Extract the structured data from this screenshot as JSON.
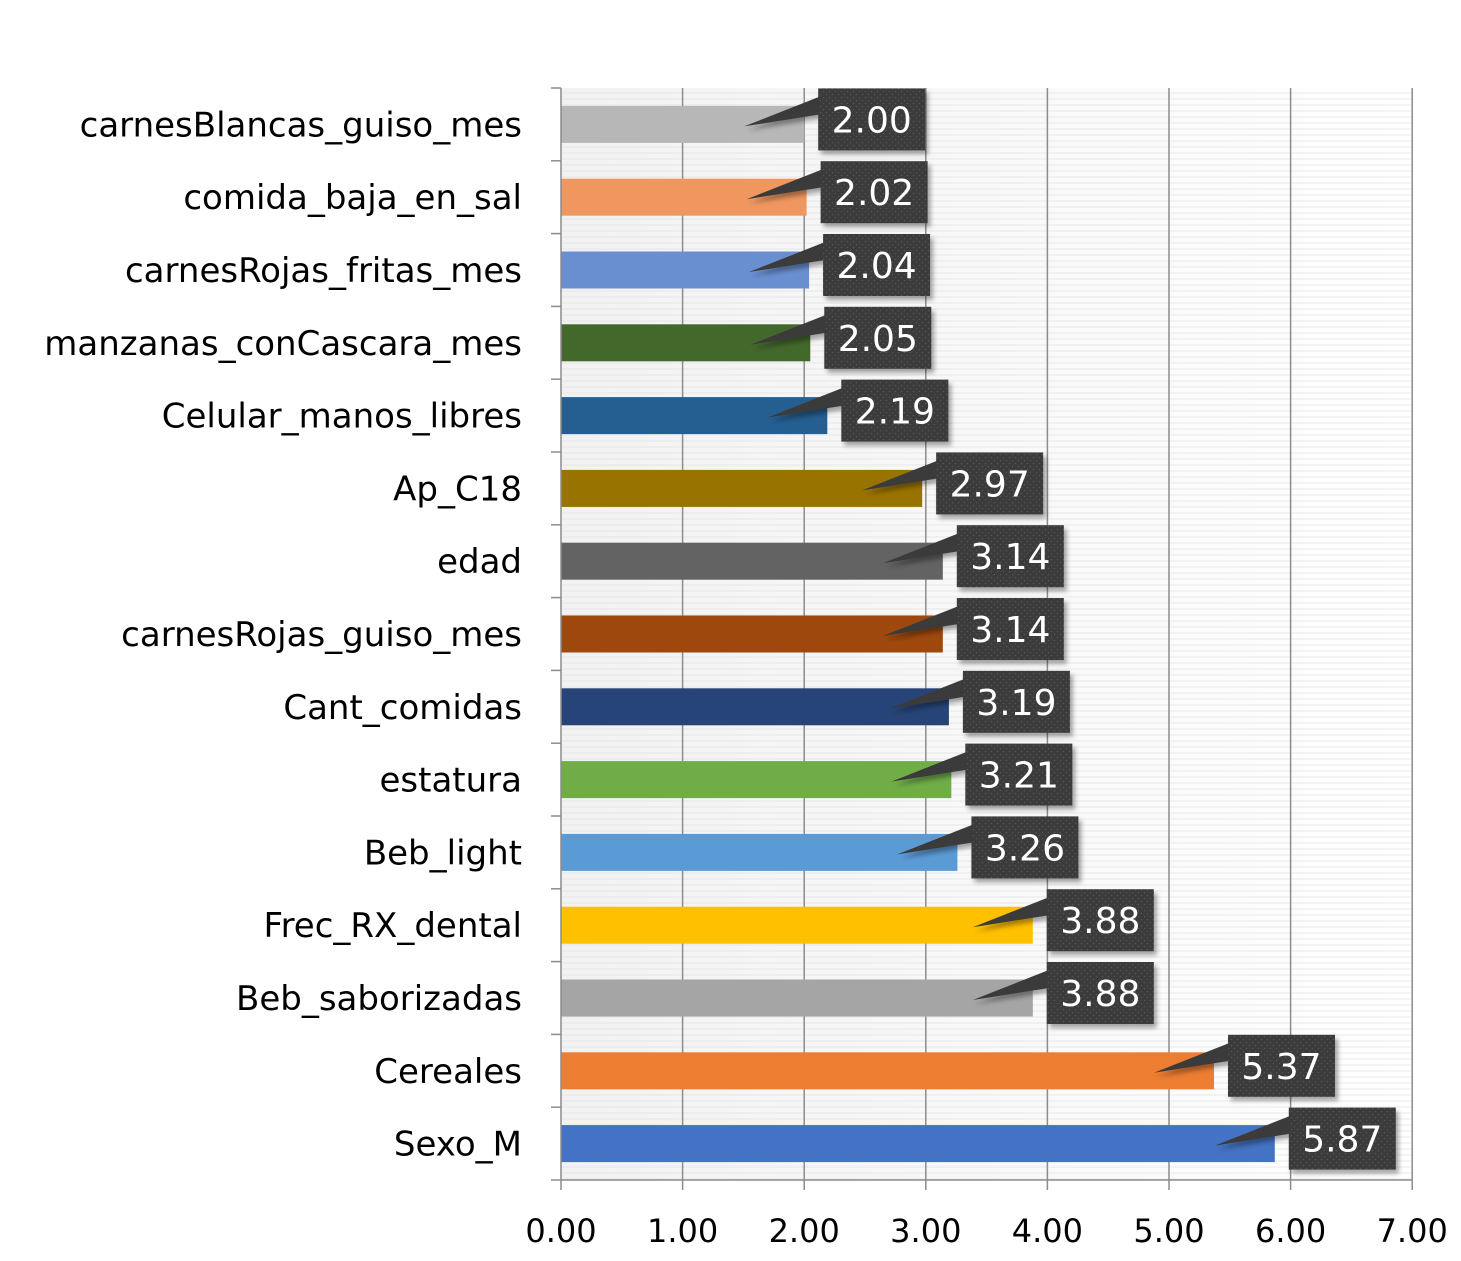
{
  "chart_data": {
    "type": "bar",
    "orientation": "horizontal",
    "title": "",
    "xlabel": "",
    "ylabel": "",
    "xlim": [
      0,
      7
    ],
    "x_ticks": [
      "0.00",
      "1.00",
      "2.00",
      "3.00",
      "4.00",
      "5.00",
      "6.00",
      "7.00"
    ],
    "grid": true,
    "legend": "none",
    "categories": [
      "carnesBlancas_guiso_mes",
      "comida_baja_en_sal",
      "carnesRojas_fritas_mes",
      "manzanas_conCascara_mes",
      "Celular_manos_libres",
      "Ap_C18",
      "edad",
      "carnesRojas_guiso_mes",
      "Cant_comidas",
      "estatura",
      "Beb_light",
      "Frec_RX_dental",
      "Beb_saborizadas",
      "Cereales",
      "Sexo_M"
    ],
    "values": [
      2.0,
      2.02,
      2.04,
      2.05,
      2.19,
      2.97,
      3.14,
      3.14,
      3.19,
      3.21,
      3.26,
      3.88,
      3.88,
      5.37,
      5.87
    ],
    "data_labels": [
      "2.00",
      "2.02",
      "2.04",
      "2.05",
      "2.19",
      "2.97",
      "3.14",
      "3.14",
      "3.19",
      "3.21",
      "3.26",
      "3.88",
      "3.88",
      "5.37",
      "5.87"
    ],
    "colors": [
      "#b7b7b7",
      "#f0975f",
      "#6a8fd0",
      "#43682b",
      "#255e91",
      "#997300",
      "#636363",
      "#9e480e",
      "#264478",
      "#70ad47",
      "#5b9bd5",
      "#ffc000",
      "#a5a5a5",
      "#ed7d31",
      "#4472c4"
    ],
    "label_box_color": "#3a3a3a"
  }
}
